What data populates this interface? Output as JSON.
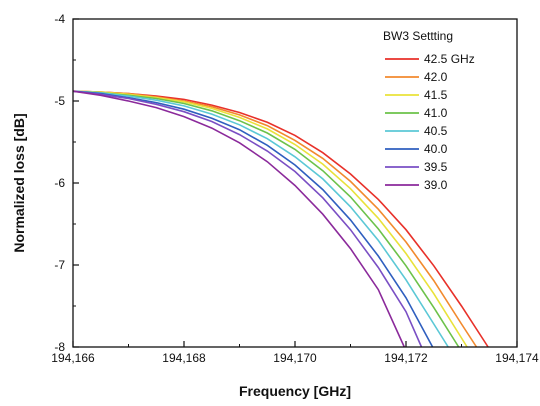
{
  "chart_data": {
    "type": "line",
    "xlabel": "Frequency  [GHz]",
    "ylabel": "Normalized loss [dB]",
    "xlim": [
      194166,
      194174
    ],
    "ylim": [
      -8,
      -4
    ],
    "xticks": [
      194166,
      194168,
      194170,
      194172,
      194174
    ],
    "xtick_labels": [
      "194,166",
      "194,168",
      "194,170",
      "194,172",
      "194,174"
    ],
    "yticks": [
      -8,
      -7,
      -6,
      -5,
      -4
    ],
    "ytick_labels": [
      "-8",
      "-7",
      "-6",
      "-5",
      "-4"
    ],
    "grid": false,
    "legend": {
      "title": "BW3 Settting",
      "placement": "top-right"
    },
    "series": [
      {
        "name": "42.5 GHz",
        "color": "#e8312a",
        "x": [
          194166.0,
          194166.5,
          194167.0,
          194167.5,
          194168.0,
          194168.5,
          194169.0,
          194169.5,
          194170.0,
          194170.5,
          194171.0,
          194171.5,
          194172.0,
          194172.5,
          194173.0,
          194173.48
        ],
        "y": [
          -4.88,
          -4.89,
          -4.91,
          -4.94,
          -4.98,
          -5.05,
          -5.14,
          -5.26,
          -5.42,
          -5.63,
          -5.89,
          -6.2,
          -6.57,
          -7.01,
          -7.5,
          -8.0
        ]
      },
      {
        "name": "42.0",
        "color": "#f28a2e",
        "x": [
          194166.0,
          194166.5,
          194167.0,
          194167.5,
          194168.0,
          194168.5,
          194169.0,
          194169.5,
          194170.0,
          194170.5,
          194171.0,
          194171.5,
          194172.0,
          194172.5,
          194173.0,
          194173.27
        ],
        "y": [
          -4.88,
          -4.89,
          -4.91,
          -4.95,
          -5.0,
          -5.07,
          -5.17,
          -5.3,
          -5.48,
          -5.7,
          -5.98,
          -6.32,
          -6.72,
          -7.19,
          -7.72,
          -8.0
        ]
      },
      {
        "name": "41.5",
        "color": "#e9e23a",
        "x": [
          194166.0,
          194166.5,
          194167.0,
          194167.5,
          194168.0,
          194168.5,
          194169.0,
          194169.5,
          194170.0,
          194170.5,
          194171.0,
          194171.5,
          194172.0,
          194172.5,
          194173.0,
          194173.1
        ],
        "y": [
          -4.88,
          -4.89,
          -4.92,
          -4.96,
          -5.01,
          -5.09,
          -5.2,
          -5.34,
          -5.53,
          -5.77,
          -6.07,
          -6.43,
          -6.86,
          -7.35,
          -7.89,
          -8.0
        ]
      },
      {
        "name": "41.0",
        "color": "#6cc24a",
        "x": [
          194166.0,
          194166.5,
          194167.0,
          194167.5,
          194168.0,
          194168.5,
          194169.0,
          194169.5,
          194170.0,
          194170.5,
          194171.0,
          194171.5,
          194172.0,
          194172.5,
          194172.95
        ],
        "y": [
          -4.88,
          -4.9,
          -4.93,
          -4.97,
          -5.03,
          -5.12,
          -5.24,
          -5.39,
          -5.59,
          -5.85,
          -6.17,
          -6.56,
          -7.01,
          -7.52,
          -8.0
        ]
      },
      {
        "name": "40.5",
        "color": "#5bc8d6",
        "x": [
          194166.0,
          194166.5,
          194167.0,
          194167.5,
          194168.0,
          194168.5,
          194169.0,
          194169.5,
          194170.0,
          194170.5,
          194171.0,
          194171.5,
          194172.0,
          194172.5,
          194172.76
        ],
        "y": [
          -4.88,
          -4.9,
          -4.94,
          -4.99,
          -5.06,
          -5.16,
          -5.29,
          -5.46,
          -5.68,
          -5.95,
          -6.29,
          -6.7,
          -7.18,
          -7.72,
          -8.0
        ]
      },
      {
        "name": "40.0",
        "color": "#2f5fbf",
        "x": [
          194166.0,
          194166.5,
          194167.0,
          194167.5,
          194168.0,
          194168.5,
          194169.0,
          194169.5,
          194170.0,
          194170.5,
          194171.0,
          194171.5,
          194172.0,
          194172.48
        ],
        "y": [
          -4.88,
          -4.91,
          -4.96,
          -5.02,
          -5.1,
          -5.21,
          -5.35,
          -5.54,
          -5.78,
          -6.08,
          -6.45,
          -6.89,
          -7.4,
          -8.0
        ]
      },
      {
        "name": "39.5",
        "color": "#7a4fc4",
        "x": [
          194166.0,
          194166.5,
          194167.0,
          194167.5,
          194168.0,
          194168.5,
          194169.0,
          194169.5,
          194170.0,
          194170.5,
          194171.0,
          194171.5,
          194172.0,
          194172.28
        ],
        "y": [
          -4.88,
          -4.92,
          -4.97,
          -5.04,
          -5.13,
          -5.25,
          -5.41,
          -5.61,
          -5.86,
          -6.18,
          -6.57,
          -7.03,
          -7.57,
          -8.0
        ]
      },
      {
        "name": "39.0",
        "color": "#8b2a9b",
        "x": [
          194166.0,
          194166.5,
          194167.0,
          194167.5,
          194168.0,
          194168.5,
          194169.0,
          194169.5,
          194170.0,
          194170.5,
          194171.0,
          194171.5,
          194171.97
        ],
        "y": [
          -4.88,
          -4.93,
          -5.0,
          -5.08,
          -5.19,
          -5.33,
          -5.51,
          -5.74,
          -6.03,
          -6.38,
          -6.8,
          -7.3,
          -8.0
        ]
      }
    ]
  }
}
